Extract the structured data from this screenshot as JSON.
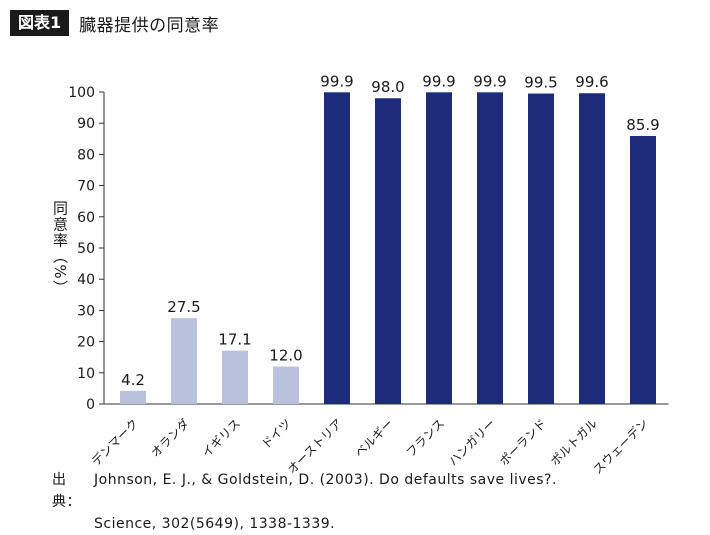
{
  "header": {
    "label": "図表1",
    "title": "臓器提供の同意率"
  },
  "chart_data": {
    "type": "bar",
    "ylabel": "同意率（%）",
    "ylim": [
      0,
      100
    ],
    "yticks": [
      0,
      10,
      20,
      30,
      40,
      50,
      60,
      70,
      80,
      90,
      100
    ],
    "categories": [
      "デンマーク",
      "オランダ",
      "イギリス",
      "ドイツ",
      "オーストリア",
      "ベルギー",
      "フランス",
      "ハンガリー",
      "ポーランド",
      "ポルトガル",
      "スウェーデン"
    ],
    "values": [
      4.2,
      27.5,
      17.1,
      12.0,
      99.9,
      98.0,
      99.9,
      99.9,
      99.5,
      99.6,
      85.9
    ],
    "value_labels": [
      "4.2",
      "27.5",
      "17.1",
      "12.0",
      "99.9",
      "98.0",
      "99.9",
      "99.9",
      "99.5",
      "99.6",
      "85.9"
    ],
    "bar_groups": [
      "light",
      "light",
      "light",
      "light",
      "dark",
      "dark",
      "dark",
      "dark",
      "dark",
      "dark",
      "dark"
    ],
    "colors": {
      "light": "#b9c1dc",
      "dark": "#1c2b7a",
      "axis": "#333333"
    }
  },
  "source": {
    "label": "出典：",
    "line1": "Johnson, E. J., & Goldstein, D. (2003). Do defaults save lives?.",
    "line2": "Science, 302(5649), 1338-1339."
  }
}
